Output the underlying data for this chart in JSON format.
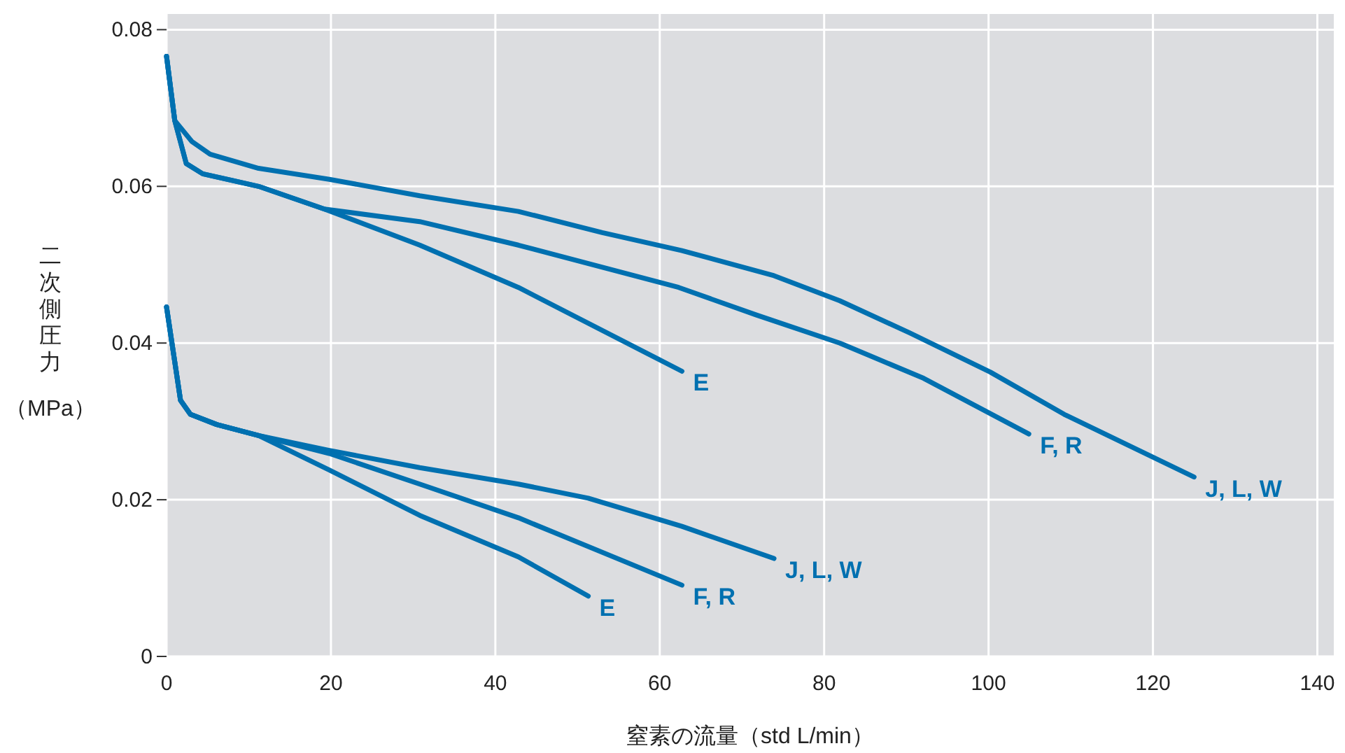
{
  "chart_data": {
    "type": "line",
    "xlabel": "窒素の流量（std L/min）",
    "ylabel": "二次側圧力（MPa）",
    "xlim": [
      0,
      142
    ],
    "ylim": [
      0,
      0.082
    ],
    "xticks": [
      0,
      20,
      40,
      60,
      80,
      100,
      120,
      140
    ],
    "yticks": [
      0,
      0.02,
      0.04,
      0.06,
      0.08
    ],
    "grid": true,
    "line_style": "solid",
    "marker": "none",
    "series": [
      {
        "name": "J, L, W",
        "color": "#0070b0",
        "x": [
          0,
          1,
          3.1,
          5.3,
          11.2,
          19.8,
          30.8,
          42.8,
          53,
          62.7,
          73.9,
          81.9,
          90.4,
          100.2,
          109.2,
          125
        ],
        "values": [
          0.0766,
          0.0684,
          0.0657,
          0.0641,
          0.0623,
          0.0609,
          0.0588,
          0.0568,
          0.0541,
          0.0518,
          0.0486,
          0.0454,
          0.0413,
          0.0363,
          0.0309,
          0.0229
        ]
      },
      {
        "name": "F, R",
        "color": "#0070b0",
        "x": [
          0,
          1,
          2.4,
          4.4,
          11.2,
          19.2,
          30.8,
          42.8,
          62.3,
          71.7,
          81.9,
          92.1,
          104.9
        ],
        "values": [
          0.0766,
          0.0684,
          0.0629,
          0.0616,
          0.06,
          0.0571,
          0.0555,
          0.0525,
          0.0471,
          0.0436,
          0.04,
          0.0355,
          0.0284
        ]
      },
      {
        "name": "E",
        "color": "#0070b0",
        "x": [
          0,
          1,
          2.4,
          4.4,
          11.2,
          19.2,
          30.8,
          42.8,
          62.7
        ],
        "values": [
          0.0766,
          0.0684,
          0.0629,
          0.0616,
          0.06,
          0.0571,
          0.0525,
          0.0471,
          0.0364
        ]
      },
      {
        "name": "J, L, W",
        "color": "#0070b0",
        "x": [
          0,
          1.7,
          2.9,
          6.1,
          11.2,
          19.8,
          30.8,
          42.8,
          51.3,
          62.7,
          73.9
        ],
        "values": [
          0.0446,
          0.0327,
          0.0309,
          0.0296,
          0.0282,
          0.0263,
          0.0241,
          0.022,
          0.0202,
          0.0166,
          0.0125
        ]
      },
      {
        "name": "F, R",
        "color": "#0070b0",
        "x": [
          0,
          1.7,
          2.9,
          6.1,
          11.2,
          19.8,
          30.8,
          42.8,
          62.7
        ],
        "values": [
          0.0446,
          0.0327,
          0.0309,
          0.0296,
          0.0282,
          0.0259,
          0.022,
          0.0177,
          0.0091
        ]
      },
      {
        "name": "E",
        "color": "#0070b0",
        "x": [
          0,
          1.7,
          2.9,
          6.1,
          11.2,
          19.8,
          30.8,
          42.8,
          51.3
        ],
        "values": [
          0.0446,
          0.0327,
          0.0309,
          0.0296,
          0.0282,
          0.0238,
          0.018,
          0.0127,
          0.0077
        ]
      }
    ]
  }
}
